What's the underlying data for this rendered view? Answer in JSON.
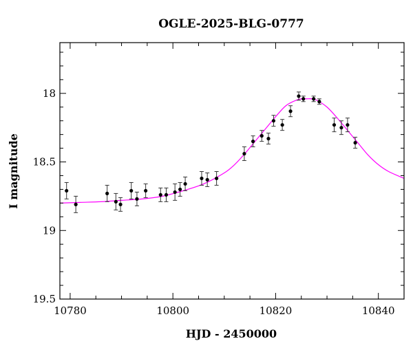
{
  "chart_data": {
    "type": "scatter",
    "title": "OGLE-2025-BLG-0777",
    "xlabel": "HJD - 2450000",
    "ylabel": "I magnitude",
    "xlim": [
      10778,
      10845
    ],
    "ylim": [
      19.5,
      17.63
    ],
    "y_inverted": true,
    "x_ticks": [
      10780,
      10800,
      10820,
      10840
    ],
    "y_ticks": [
      18,
      18.5,
      19,
      19.5
    ],
    "y_tick_labels": [
      "18",
      "18.5",
      "19",
      "19.5"
    ],
    "grid": false,
    "colors": {
      "data": "#000000",
      "model": "#ff00ff",
      "frame": "#000000"
    },
    "series": [
      {
        "kind": "points_with_errorbars",
        "x": [
          10779.3,
          10781.1,
          10787.2,
          10788.9,
          10789.8,
          10791.9,
          10793.0,
          10794.7,
          10797.6,
          10798.7,
          10800.4,
          10801.4,
          10802.4,
          10805.6,
          10806.7,
          10808.5,
          10813.9,
          10815.6,
          10817.3,
          10818.6,
          10819.6,
          10821.3,
          10822.9,
          10824.5,
          10825.4,
          10827.4,
          10828.5,
          10831.4,
          10832.8,
          10834.0,
          10835.5
        ],
        "y": [
          18.71,
          18.81,
          18.73,
          18.79,
          18.81,
          18.71,
          18.77,
          18.71,
          18.74,
          18.74,
          18.72,
          18.7,
          18.66,
          18.62,
          18.63,
          18.62,
          18.44,
          18.35,
          18.31,
          18.33,
          18.2,
          18.23,
          18.13,
          18.02,
          18.04,
          18.04,
          18.06,
          18.23,
          18.25,
          18.23,
          18.36
        ],
        "err": [
          0.06,
          0.06,
          0.06,
          0.06,
          0.05,
          0.06,
          0.05,
          0.05,
          0.05,
          0.05,
          0.06,
          0.05,
          0.05,
          0.05,
          0.05,
          0.05,
          0.05,
          0.04,
          0.04,
          0.04,
          0.04,
          0.04,
          0.04,
          0.03,
          0.02,
          0.02,
          0.02,
          0.05,
          0.05,
          0.05,
          0.04
        ]
      },
      {
        "kind": "model_curve",
        "x": [
          10778,
          10782,
          10786,
          10790,
          10794,
          10798,
          10802,
          10806,
          10810,
          10812,
          10814,
          10816,
          10818,
          10820,
          10822,
          10824,
          10825,
          10826,
          10827,
          10828,
          10830,
          10832,
          10834,
          10836,
          10838,
          10840,
          10842,
          10845
        ],
        "y": [
          18.8,
          18.795,
          18.79,
          18.78,
          18.77,
          18.75,
          18.71,
          18.66,
          18.58,
          18.52,
          18.44,
          18.35,
          18.26,
          18.17,
          18.09,
          18.05,
          18.04,
          18.04,
          18.04,
          18.05,
          18.1,
          18.18,
          18.27,
          18.36,
          18.45,
          18.52,
          18.57,
          18.62
        ]
      }
    ]
  }
}
